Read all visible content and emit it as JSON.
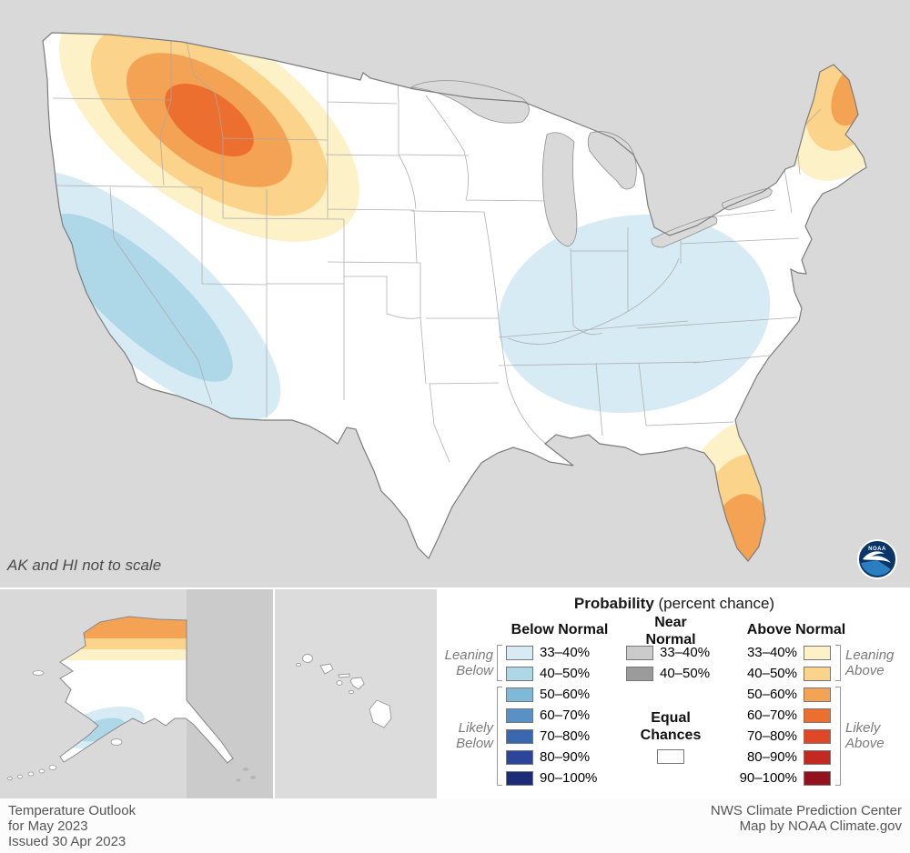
{
  "map": {
    "note": "AK and HI not to scale",
    "colors": {
      "background": "#d9d9d9",
      "land": "#ffffff",
      "border": "#7c7c7c"
    }
  },
  "logo": {
    "text": "NOAA"
  },
  "legend": {
    "title_bold": "Probability",
    "title_rest": " (percent chance)",
    "below_header": "Below Normal",
    "near_header_line1": "Near",
    "near_header_line2": "Normal",
    "above_header": "Above Normal",
    "equal_line1": "Equal",
    "equal_line2": "Chances",
    "equal_color": "#ffffff",
    "groups": {
      "leaning_below": "Leaning Below",
      "likely_below": "Likely Below",
      "leaning_above": "Leaning Above",
      "likely_above": "Likely Above"
    },
    "below_rows": [
      {
        "label": "33–40%",
        "color": "#d6ebf3"
      },
      {
        "label": "40–50%",
        "color": "#aed7e8"
      },
      {
        "label": "50–60%",
        "color": "#7fb9d8"
      },
      {
        "label": "60–70%",
        "color": "#5891c6"
      },
      {
        "label": "70–80%",
        "color": "#3a68b0"
      },
      {
        "label": "80–90%",
        "color": "#2b459a"
      },
      {
        "label": "90–100%",
        "color": "#1b2b77"
      }
    ],
    "near_rows": [
      {
        "label": "33–40%",
        "color": "#cbcbcb"
      },
      {
        "label": "40–50%",
        "color": "#9b9b9b"
      }
    ],
    "above_rows": [
      {
        "label": "33–40%",
        "color": "#fdf1c8"
      },
      {
        "label": "40–50%",
        "color": "#fbd38b"
      },
      {
        "label": "50–60%",
        "color": "#f4a254"
      },
      {
        "label": "60–70%",
        "color": "#ed6f2f"
      },
      {
        "label": "70–80%",
        "color": "#de4826"
      },
      {
        "label": "80–90%",
        "color": "#c22a21"
      },
      {
        "label": "90–100%",
        "color": "#94121d"
      }
    ]
  },
  "footer": {
    "left_lines": [
      "Temperature Outlook",
      "for May 2023",
      "Issued 30 Apr 2023"
    ],
    "right_lines": [
      "NWS Climate Prediction Center",
      "Map by NOAA Climate.gov"
    ]
  }
}
